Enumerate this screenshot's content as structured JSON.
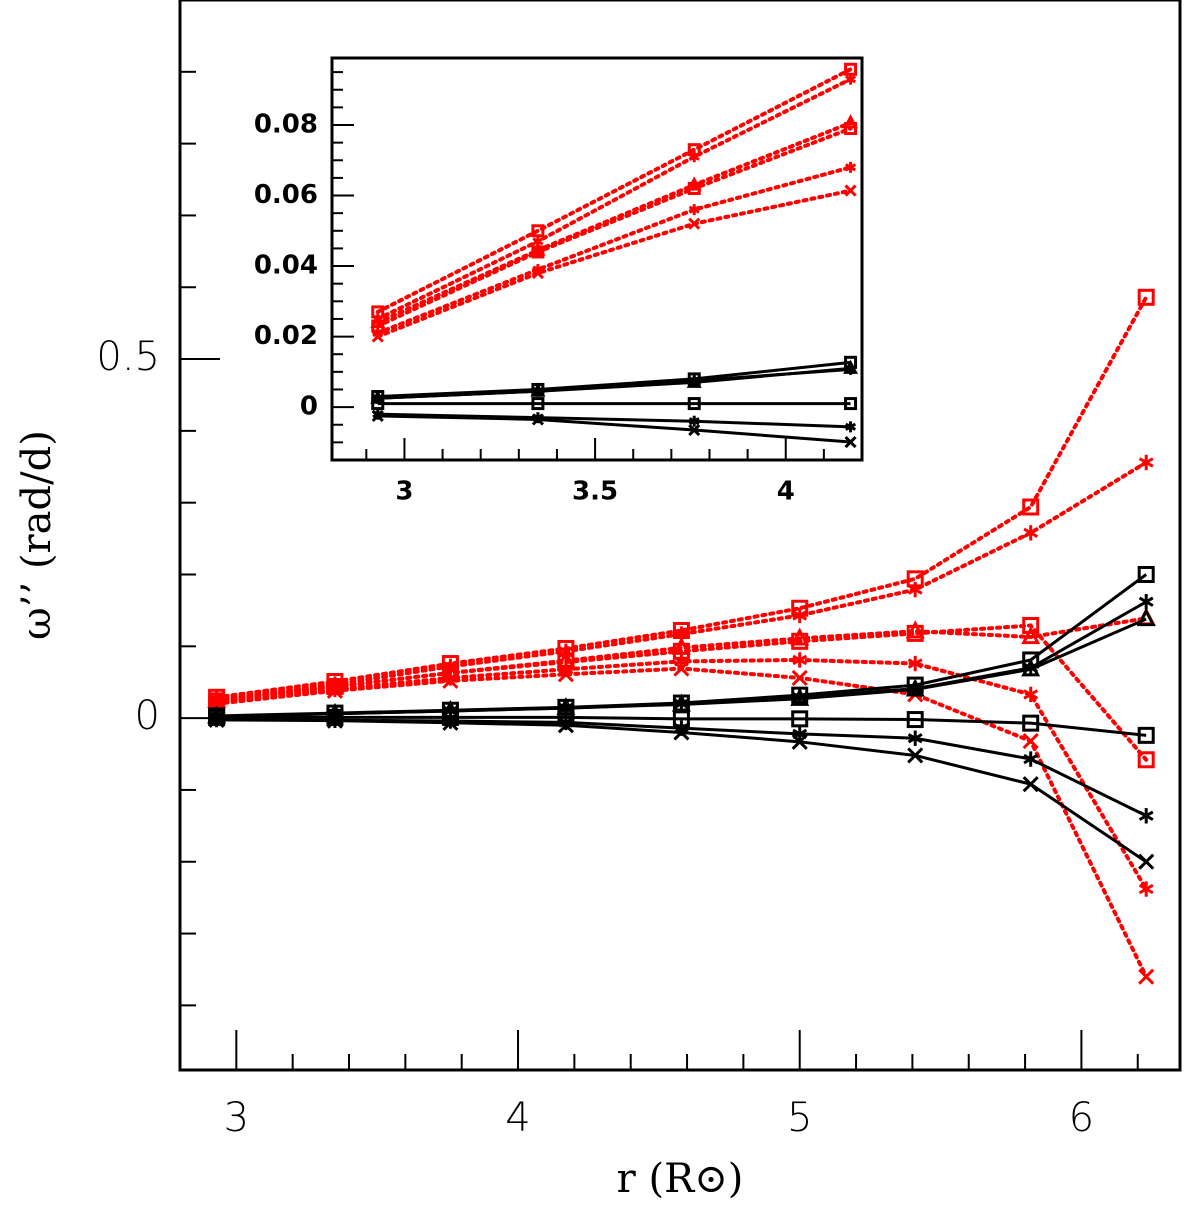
{
  "chart_data": [
    {
      "type": "line",
      "xlabel": "r (R⊙)",
      "ylabel": "ω’’ (rad/d)",
      "x": [
        2.93,
        3.35,
        3.76,
        4.17,
        4.58,
        5.0,
        5.41,
        5.82,
        6.23
      ],
      "xlim": [
        2.8,
        6.35
      ],
      "xticks": [
        3,
        4,
        5,
        6
      ],
      "xminor": [
        3.2,
        3.4,
        3.6,
        3.8,
        4.2,
        4.4,
        4.6,
        4.8,
        5.2,
        5.4,
        5.6,
        5.8,
        6.2
      ],
      "ylim": [
        -0.49,
        1.0
      ],
      "yticks": [
        0,
        0.5
      ],
      "yminor": [
        -0.4,
        -0.3,
        -0.2,
        -0.1,
        0.1,
        0.2,
        0.3,
        0.4,
        0.6,
        0.7,
        0.8,
        0.9
      ],
      "series": [
        {
          "color": "#ff0000",
          "linestyle": "dotted",
          "marker": "square",
          "values": [
            0.029,
            0.051,
            0.076,
            0.097,
            0.122,
            0.153,
            0.194,
            0.294,
            0.586
          ]
        },
        {
          "color": "#ff0000",
          "linestyle": "dotted",
          "marker": "star",
          "values": [
            0.026,
            0.047,
            0.072,
            0.093,
            0.117,
            0.143,
            0.179,
            0.258,
            0.356
          ]
        },
        {
          "color": "#ff0000",
          "linestyle": "dotted",
          "marker": "triangle",
          "values": [
            0.024,
            0.044,
            0.063,
            0.08,
            0.098,
            0.111,
            0.121,
            0.113,
            0.139
          ]
        },
        {
          "color": "#ff0000",
          "linestyle": "dotted",
          "marker": "square",
          "values": [
            0.024,
            0.044,
            0.063,
            0.078,
            0.093,
            0.107,
            0.118,
            0.129,
            -0.058
          ]
        },
        {
          "color": "#ff0000",
          "linestyle": "dotted",
          "marker": "star",
          "values": [
            0.022,
            0.04,
            0.056,
            0.068,
            0.079,
            0.081,
            0.076,
            0.033,
            -0.238
          ]
        },
        {
          "color": "#ff0000",
          "linestyle": "dotted",
          "marker": "cross",
          "values": [
            0.02,
            0.038,
            0.052,
            0.061,
            0.069,
            0.056,
            0.033,
            -0.032,
            -0.36
          ]
        },
        {
          "color": "#000000",
          "linestyle": "solid",
          "marker": "square",
          "values": [
            0.003,
            0.007,
            0.011,
            0.015,
            0.021,
            0.032,
            0.046,
            0.081,
            0.2
          ]
        },
        {
          "color": "#000000",
          "linestyle": "solid",
          "marker": "star",
          "values": [
            0.0025,
            0.006,
            0.01,
            0.014,
            0.02,
            0.029,
            0.041,
            0.07,
            0.162
          ]
        },
        {
          "color": "#000000",
          "linestyle": "solid",
          "marker": "triangle",
          "values": [
            0.0025,
            0.006,
            0.01,
            0.014,
            0.019,
            0.027,
            0.04,
            0.068,
            0.138
          ]
        },
        {
          "color": "#000000",
          "linestyle": "solid",
          "marker": "square",
          "values": [
            0.001,
            0.001,
            0.001,
            0.001,
            -0.001,
            -0.001,
            -0.002,
            -0.007,
            -0.024
          ]
        },
        {
          "color": "#000000",
          "linestyle": "solid",
          "marker": "star",
          "values": [
            -0.002,
            -0.003,
            -0.004,
            -0.006,
            -0.014,
            -0.022,
            -0.028,
            -0.057,
            -0.136
          ]
        },
        {
          "color": "#000000",
          "linestyle": "solid",
          "marker": "cross",
          "values": [
            -0.0025,
            -0.0035,
            -0.0065,
            -0.01,
            -0.02,
            -0.033,
            -0.052,
            -0.092,
            -0.2
          ]
        }
      ]
    },
    {
      "type": "line",
      "x": [
        2.93,
        3.35,
        3.76,
        4.17
      ],
      "xlim": [
        2.81,
        4.2
      ],
      "xticks": [
        3,
        3.5,
        4
      ],
      "xminor": [
        2.9,
        3.1,
        3.2,
        3.3,
        3.4,
        3.6,
        3.7,
        3.8,
        3.9,
        4.1
      ],
      "ylim": [
        -0.015,
        0.099
      ],
      "yticks": [
        0,
        0.02,
        0.04,
        0.06,
        0.08
      ],
      "yminor": [
        -0.01,
        -0.005,
        0.005,
        0.01,
        0.015,
        0.025,
        0.03,
        0.035,
        0.045,
        0.05,
        0.055,
        0.065,
        0.07,
        0.075,
        0.085,
        0.09,
        0.095
      ],
      "series": [
        {
          "color": "#ff0000",
          "linestyle": "dotted",
          "marker": "square",
          "values": [
            0.027,
            0.05,
            0.073,
            0.0958
          ]
        },
        {
          "color": "#ff0000",
          "linestyle": "dotted",
          "marker": "star",
          "values": [
            0.025,
            0.047,
            0.071,
            0.093
          ]
        },
        {
          "color": "#ff0000",
          "linestyle": "dotted",
          "marker": "triangle",
          "values": [
            0.024,
            0.0445,
            0.063,
            0.0806
          ]
        },
        {
          "color": "#ff0000",
          "linestyle": "dotted",
          "marker": "square",
          "values": [
            0.023,
            0.044,
            0.062,
            0.079
          ]
        },
        {
          "color": "#ff0000",
          "linestyle": "dotted",
          "marker": "star",
          "values": [
            0.021,
            0.039,
            0.056,
            0.068
          ]
        },
        {
          "color": "#ff0000",
          "linestyle": "dotted",
          "marker": "cross",
          "values": [
            0.02,
            0.038,
            0.052,
            0.0614
          ]
        },
        {
          "color": "#000000",
          "linestyle": "solid",
          "marker": "square",
          "values": [
            0.003,
            0.005,
            0.008,
            0.0127
          ]
        },
        {
          "color": "#000000",
          "linestyle": "solid",
          "marker": "star",
          "values": [
            0.0025,
            0.0045,
            0.0075,
            0.0107
          ]
        },
        {
          "color": "#000000",
          "linestyle": "solid",
          "marker": "triangle",
          "values": [
            0.0025,
            0.0045,
            0.007,
            0.011
          ]
        },
        {
          "color": "#000000",
          "linestyle": "solid",
          "marker": "square",
          "values": [
            0.001,
            0.001,
            0.001,
            0.001
          ]
        },
        {
          "color": "#000000",
          "linestyle": "solid",
          "marker": "star",
          "values": [
            -0.002,
            -0.003,
            -0.004,
            -0.0056
          ]
        },
        {
          "color": "#000000",
          "linestyle": "solid",
          "marker": "cross",
          "values": [
            -0.0025,
            -0.0035,
            -0.0065,
            -0.0099
          ]
        }
      ]
    }
  ]
}
